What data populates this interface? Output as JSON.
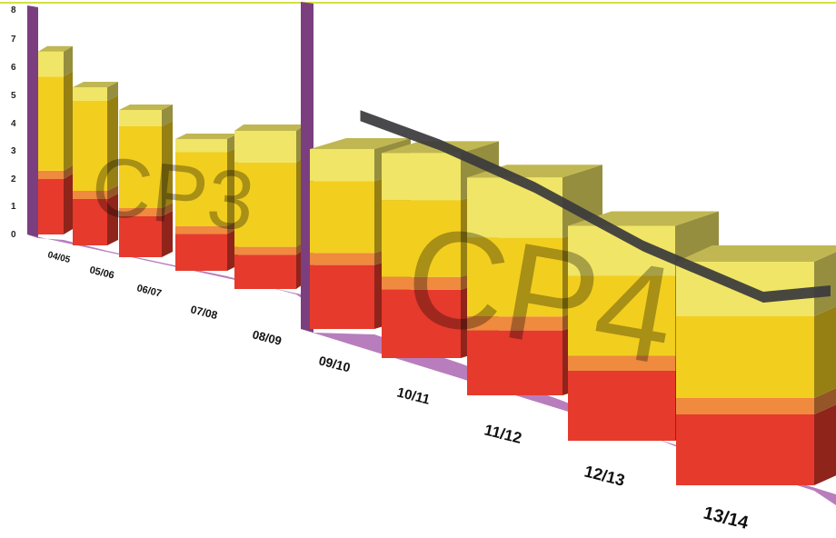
{
  "chart_data": [
    {
      "type": "bar",
      "stacked": true,
      "three_d": true,
      "title": "",
      "period_label": "CP3",
      "categories": [
        "04/05",
        "05/06",
        "06/07",
        "07/08",
        "08/09"
      ],
      "series": [
        {
          "color": "#e63a2c",
          "values": [
            2.0,
            1.7,
            1.5,
            1.4,
            1.3
          ]
        },
        {
          "color": "#ef8a3e",
          "values": [
            0.3,
            0.3,
            0.3,
            0.3,
            0.3
          ]
        },
        {
          "color": "#f2ce1f",
          "values": [
            3.4,
            3.3,
            3.0,
            2.8,
            3.2
          ]
        },
        {
          "color": "#f0e566",
          "values": [
            0.9,
            0.5,
            0.6,
            0.5,
            1.2
          ]
        }
      ],
      "y_ticks": [
        "0",
        "1",
        "2",
        "3",
        "4",
        "5",
        "6",
        "7",
        "8"
      ],
      "ylim": [
        0,
        8
      ],
      "grid": false,
      "legend": false
    },
    {
      "type": "bar",
      "stacked": true,
      "three_d": true,
      "title": "",
      "period_label": "CP4",
      "categories": [
        "09/10",
        "10/11",
        "11/12",
        "12/13",
        "13/14"
      ],
      "series": [
        {
          "color": "#e63a2c",
          "values": [
            1.6,
            1.6,
            1.4,
            1.4,
            1.3
          ]
        },
        {
          "color": "#ef8a3e",
          "values": [
            0.3,
            0.3,
            0.3,
            0.3,
            0.3
          ]
        },
        {
          "color": "#f2ce1f",
          "values": [
            1.8,
            1.8,
            1.7,
            1.6,
            1.5
          ]
        },
        {
          "color": "#f0e566",
          "values": [
            0.8,
            1.1,
            1.3,
            1.0,
            1.0
          ]
        }
      ],
      "line": {
        "color": "#3a3a3c",
        "values": [
          5.2,
          4.85,
          4.35,
          3.75,
          3.3
        ]
      },
      "ylim": [
        0,
        8
      ],
      "grid": false,
      "legend": false
    }
  ],
  "colors": {
    "wall": "#7b3f80",
    "floor": "#b06fb5",
    "top_rule": "#c8d400"
  }
}
